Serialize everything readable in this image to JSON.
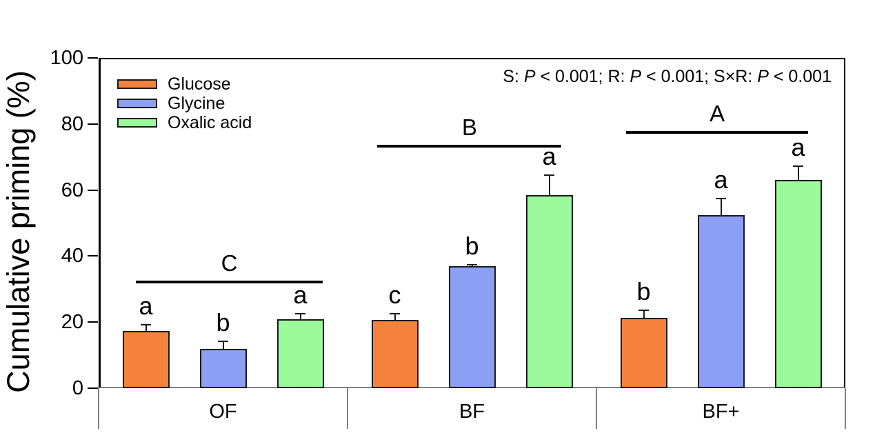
{
  "chart_data": {
    "type": "bar",
    "title": "",
    "xlabel": "",
    "ylabel": "Cumulative priming (%)",
    "ylim": [
      0,
      100
    ],
    "yticks": [
      0,
      20,
      40,
      60,
      80,
      100
    ],
    "grid": false,
    "legend_position": "top-left",
    "categories": [
      "OF",
      "BF",
      "BF+"
    ],
    "series": [
      {
        "name": "Glucose",
        "color": "#F5823C",
        "values": [
          17.3,
          20.7,
          21.3
        ],
        "errors": [
          1.9,
          1.9,
          2.3
        ],
        "sig_letters": [
          "a",
          "c",
          "b"
        ]
      },
      {
        "name": "Glycine",
        "color": "#8B9FF5",
        "values": [
          12.0,
          37.0,
          52.5
        ],
        "errors": [
          2.3,
          0.4,
          5.0
        ],
        "sig_letters": [
          "b",
          "b",
          "a"
        ]
      },
      {
        "name": "Oxalic acid",
        "color": "#9BFA9B",
        "values": [
          20.9,
          58.5,
          63.0
        ],
        "errors": [
          1.7,
          6.1,
          4.3
        ],
        "sig_letters": [
          "a",
          "a",
          "a"
        ]
      }
    ],
    "group_annotations": [
      {
        "label": "C",
        "y": 32.2,
        "span": [
          0.15,
          0.9
        ]
      },
      {
        "label": "B",
        "y": 73.3,
        "span": [
          0.12,
          0.86
        ]
      },
      {
        "label": "A",
        "y": 77.5,
        "span": [
          0.12,
          0.85
        ]
      }
    ],
    "stats_annotation": "S: P < 0.001; R: P < 0.001; S×R: P < 0.001",
    "axis_color": "#000000",
    "baseline_color": "#808080"
  }
}
